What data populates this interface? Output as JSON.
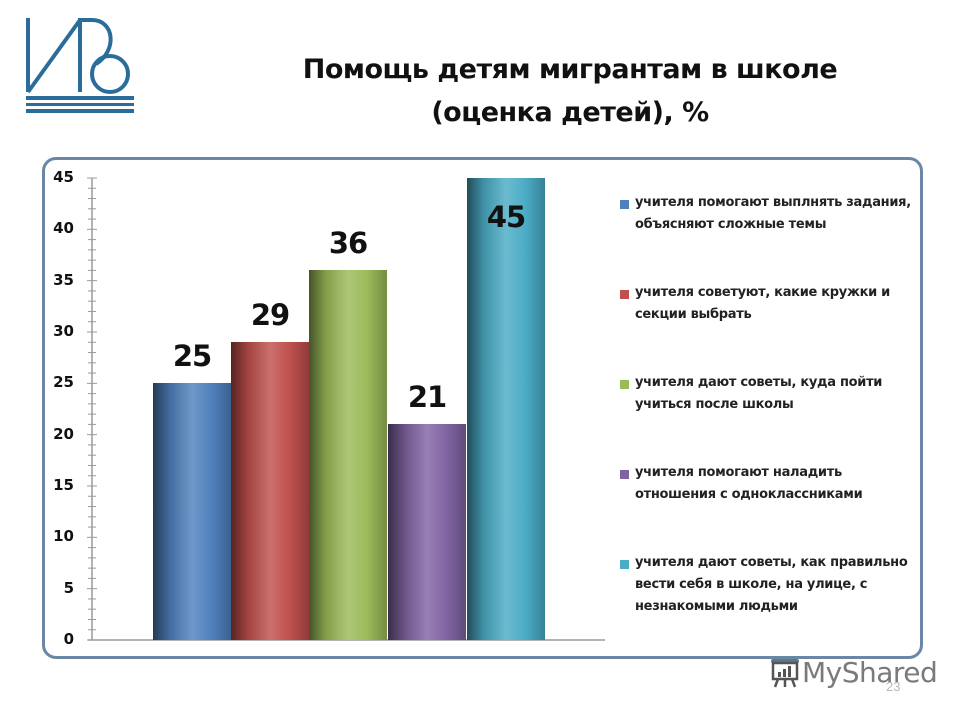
{
  "header": {
    "logo_alt": "IDV logo",
    "title_line1": "Помощь детям мигрантам в школе",
    "title_line2": "(оценка детей), %"
  },
  "colors": {
    "frame_border": "#6a88a6",
    "logo": "#2a6c9a",
    "series": [
      "#4f81bd",
      "#c0504d",
      "#9bbb59",
      "#8064a2",
      "#4bacc6"
    ]
  },
  "chart_data": {
    "type": "bar",
    "title": "Помощь детям мигрантам в школе (оценка детей), %",
    "xlabel": "",
    "ylabel": "",
    "ylim": [
      0,
      45
    ],
    "yticks": [
      0,
      5,
      10,
      15,
      20,
      25,
      30,
      35,
      40,
      45
    ],
    "grid": false,
    "legend_position": "right",
    "categories": [
      ""
    ],
    "series": [
      {
        "name": "учителя помогают выплнять задания, объясняют сложные темы",
        "values": [
          25
        ],
        "color": "#4f81bd"
      },
      {
        "name": "учителя советуют, какие кружки и секции выбрать",
        "values": [
          29
        ],
        "color": "#c0504d"
      },
      {
        "name": "учителя дают советы, куда пойти учиться после школы",
        "values": [
          36
        ],
        "color": "#9bbb59"
      },
      {
        "name": "учителя помогают наладить отношения с одноклассниками",
        "values": [
          21
        ],
        "color": "#8064a2"
      },
      {
        "name": "учителя дают советы, как правильно вести себя в школе, на улице, с незнакомыми людьми",
        "values": [
          45
        ],
        "color": "#4bacc6"
      }
    ],
    "data_labels": [
      "25",
      "29",
      "36",
      "21",
      "45"
    ]
  },
  "legend": {
    "items": [
      {
        "label": "учителя помогают выплнять задания, объясняют сложные темы"
      },
      {
        "label": "учителя советуют, какие кружки и секции выбрать"
      },
      {
        "label": "учителя дают советы, куда пойти учиться после школы"
      },
      {
        "label": "учителя помогают наладить отношения с одноклассниками"
      },
      {
        "label": "учителя дают советы, как правильно вести себя в школе, на улице, с незнакомыми людьми"
      }
    ]
  },
  "footer": {
    "watermark": "MyShared",
    "page_number": "23"
  }
}
